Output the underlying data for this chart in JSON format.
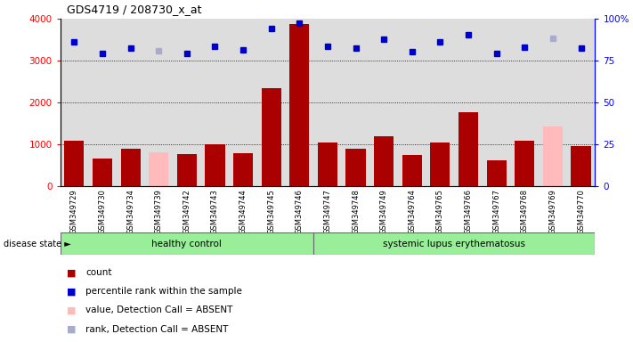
{
  "title": "GDS4719 / 208730_x_at",
  "samples": [
    "GSM349729",
    "GSM349730",
    "GSM349734",
    "GSM349739",
    "GSM349742",
    "GSM349743",
    "GSM349744",
    "GSM349745",
    "GSM349746",
    "GSM349747",
    "GSM349748",
    "GSM349749",
    "GSM349764",
    "GSM349765",
    "GSM349766",
    "GSM349767",
    "GSM349768",
    "GSM349769",
    "GSM349770"
  ],
  "counts": [
    1100,
    670,
    900,
    820,
    770,
    1010,
    800,
    2350,
    3870,
    1040,
    890,
    1200,
    760,
    1040,
    1760,
    630,
    1100,
    1440,
    960
  ],
  "absent_count_overlay": [
    null,
    null,
    null,
    820,
    null,
    null,
    null,
    null,
    null,
    null,
    null,
    null,
    null,
    null,
    null,
    null,
    null,
    1440,
    null
  ],
  "ranks": [
    3450,
    3180,
    3300,
    3230,
    3180,
    3350,
    3250,
    3770,
    3890,
    3340,
    3300,
    3510,
    3220,
    3450,
    3630,
    3170,
    3330,
    3540,
    3310
  ],
  "absent_rank_overlay": [
    null,
    null,
    null,
    3230,
    null,
    null,
    null,
    null,
    null,
    null,
    null,
    null,
    null,
    null,
    null,
    null,
    null,
    3540,
    null
  ],
  "absent_indices": [
    3,
    17
  ],
  "group_boundary": 9,
  "group1_label": "healthy control",
  "group2_label": "systemic lupus erythematosus",
  "disease_state_label": "disease state",
  "ylim_left": [
    0,
    4000
  ],
  "yticks_left": [
    0,
    1000,
    2000,
    3000,
    4000
  ],
  "yticks_right": [
    0,
    25,
    50,
    75,
    100
  ],
  "bar_color": "#aa0000",
  "absent_bar_color": "#ffbbbb",
  "rank_color": "#0000cc",
  "absent_rank_color": "#aaaacc",
  "bg_color": "#dddddd",
  "group_bg": "#99ee99",
  "legend_items": [
    {
      "label": "count",
      "color": "#aa0000"
    },
    {
      "label": "percentile rank within the sample",
      "color": "#0000cc"
    },
    {
      "label": "value, Detection Call = ABSENT",
      "color": "#ffbbbb"
    },
    {
      "label": "rank, Detection Call = ABSENT",
      "color": "#aaaacc"
    }
  ]
}
